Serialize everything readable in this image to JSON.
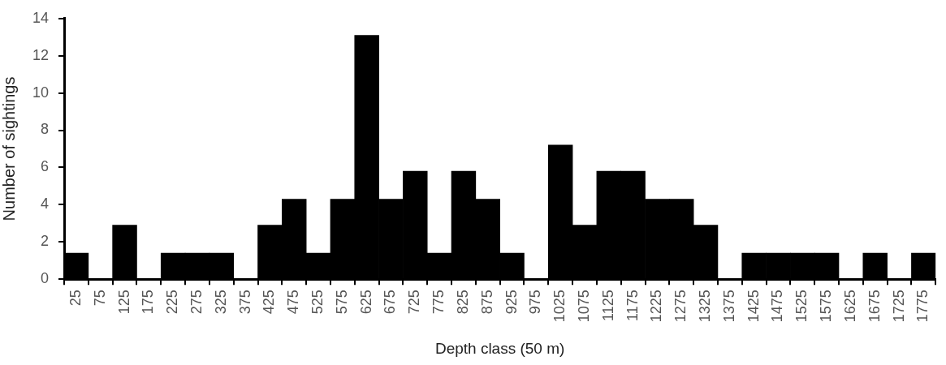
{
  "chart_data": {
    "type": "bar",
    "xlabel": "Depth class (50 m)",
    "ylabel": "Number of sightings",
    "categories": [
      "25",
      "75",
      "125",
      "175",
      "225",
      "275",
      "325",
      "375",
      "425",
      "475",
      "525",
      "575",
      "625",
      "675",
      "725",
      "775",
      "825",
      "875",
      "925",
      "975",
      "1025",
      "1075",
      "1125",
      "1175",
      "1225",
      "1275",
      "1325",
      "1375",
      "1425",
      "1475",
      "1525",
      "1575",
      "1625",
      "1675",
      "1725",
      "1775"
    ],
    "values": [
      1.4,
      0,
      2.9,
      0,
      1.4,
      1.4,
      1.4,
      0,
      2.9,
      4.3,
      1.4,
      4.3,
      13.1,
      4.3,
      5.8,
      1.4,
      5.8,
      4.3,
      1.4,
      0,
      7.2,
      2.9,
      5.8,
      5.8,
      4.3,
      4.3,
      2.9,
      0,
      1.4,
      1.4,
      1.4,
      1.4,
      0,
      1.4,
      0,
      1.4
    ],
    "color": "#000000",
    "ylim": [
      0,
      14
    ],
    "yticks": [
      0,
      2,
      4,
      6,
      8,
      10,
      12,
      14
    ],
    "grid": false
  }
}
